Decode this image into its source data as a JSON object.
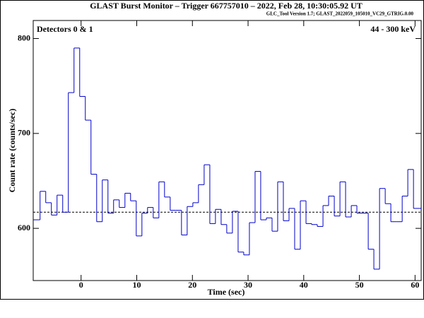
{
  "chart_data": {
    "type": "histogram",
    "title": "GLAST Burst Monitor  –  Trigger 667757010  –  2022, Feb 28, 10:30:05.92 UT",
    "subtitle": "GLC_Tool Version 1.7; GLAST_2022059_105010_VC29_GTRIG.0.00",
    "annotations": [
      "Detectors 0 & 1",
      "44 - 300 keV"
    ],
    "x_label": "Time (sec)",
    "y_label": "Count rate (counts/sec)",
    "color": "#0000cc",
    "bins": [
      -8.6,
      -7.37,
      -6.35,
      -5.34,
      -4.32,
      -3.3,
      -2.29,
      -1.27,
      -0.25,
      0.76,
      1.78,
      2.8,
      3.81,
      4.83,
      5.84,
      6.86,
      7.88,
      8.89,
      9.91,
      10.93,
      11.94,
      12.96,
      13.98,
      14.99,
      16.01,
      17.03,
      18.04,
      19.06,
      20.08,
      21.09,
      22.11,
      23.13,
      24.14,
      25.16,
      26.17,
      27.19,
      28.21,
      29.22,
      30.24,
      31.26,
      32.27,
      33.29,
      34.31,
      35.32,
      36.34,
      37.36,
      38.37,
      39.39,
      40.41,
      41.42,
      42.44,
      43.46,
      44.47,
      45.49,
      46.51,
      47.52,
      48.54,
      49.55,
      50.57,
      51.59,
      52.6,
      53.62,
      54.64,
      55.65,
      56.67,
      57.69,
      58.7,
      59.72,
      61.1
    ],
    "values": [
      609,
      639,
      627,
      614,
      635,
      617,
      743,
      790,
      739,
      714,
      657,
      607,
      651,
      616,
      630,
      622,
      637,
      629,
      592,
      616,
      622,
      611,
      649,
      633,
      619,
      619,
      593,
      623,
      627,
      646,
      667,
      605,
      620,
      604,
      595,
      618,
      575,
      572,
      606,
      660,
      609,
      611,
      597,
      649,
      608,
      621,
      578,
      629,
      605,
      604,
      602,
      624,
      634,
      613,
      649,
      612,
      624,
      616,
      616,
      578,
      557,
      642,
      626,
      607,
      607,
      634,
      662,
      621
    ],
    "background_level": 617,
    "xlim": [
      -8.6,
      61.1
    ],
    "ylim": [
      545,
      819
    ],
    "xticks": [
      0,
      10,
      20,
      30,
      40,
      50,
      60
    ],
    "yticks": [
      600,
      700,
      800
    ]
  }
}
